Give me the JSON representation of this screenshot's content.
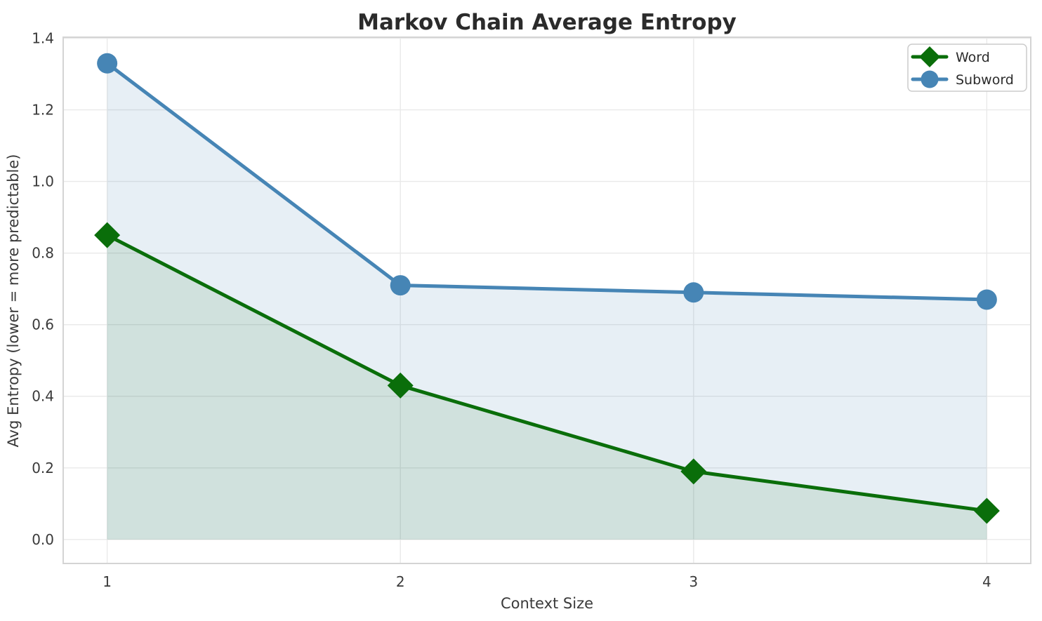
{
  "chart_data": {
    "type": "line",
    "title": "Markov Chain Average Entropy",
    "xlabel": "Context Size",
    "ylabel": "Avg Entropy (lower = more predictable)",
    "x": [
      1,
      2,
      3,
      4
    ],
    "series": [
      {
        "name": "Word",
        "values": [
          0.85,
          0.43,
          0.19,
          0.08
        ],
        "color": "#0a6e0a",
        "marker": "diamond",
        "fill_color": "rgba(10,110,10,0.10)"
      },
      {
        "name": "Subword",
        "values": [
          1.33,
          0.71,
          0.69,
          0.67
        ],
        "color": "#4685b5",
        "marker": "circle",
        "fill_color": "rgba(70,133,181,0.13)"
      }
    ],
    "fill_baseline": 0,
    "xlim": [
      0.85,
      4.15
    ],
    "ylim": [
      -0.067,
      1.403
    ],
    "xticks": [
      "1",
      "2",
      "3",
      "4"
    ],
    "yticks": [
      "0.0",
      "0.2",
      "0.4",
      "0.6",
      "0.8",
      "1.0",
      "1.2",
      "1.4"
    ],
    "grid": true,
    "legend_position": "upper right",
    "colors": {
      "grid": "#e9e9e9",
      "spine": "#d4d4d4",
      "tick_text": "#3a3a3a",
      "title_text": "#2b2b2b",
      "background": "#ffffff"
    }
  }
}
